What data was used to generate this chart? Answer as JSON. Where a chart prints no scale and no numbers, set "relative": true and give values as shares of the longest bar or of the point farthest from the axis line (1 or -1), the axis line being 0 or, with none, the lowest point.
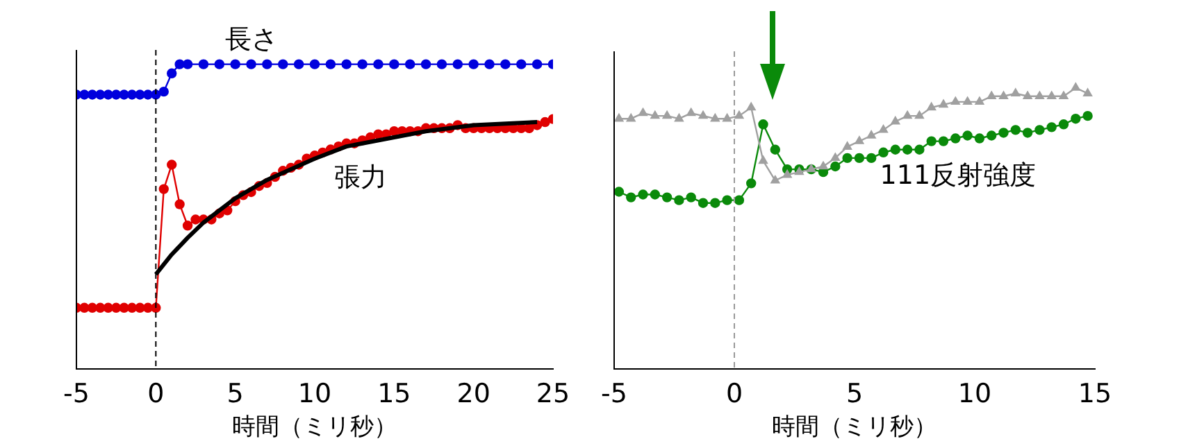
{
  "chart_data": [
    {
      "type": "line",
      "relative": true,
      "xlabel": "時間（ミリ秒）",
      "xlim": [
        -5,
        25
      ],
      "xticks": [
        -5,
        0,
        5,
        10,
        15,
        20,
        25
      ],
      "grid": false,
      "legend": false,
      "marker": "circle",
      "line_style": "solid",
      "ref_lines": [
        {
          "axis": "x",
          "value": 0,
          "color": "#000000",
          "line_style": "dashed"
        }
      ],
      "series": [
        {
          "name": "長さ",
          "color": "#0000dd",
          "x": [
            -5,
            -4.5,
            -4,
            -3.5,
            -3,
            -2.5,
            -2,
            -1.5,
            -1,
            -0.5,
            0,
            0.5,
            1,
            1.5,
            2,
            3,
            4,
            5,
            6,
            7,
            8,
            9,
            10,
            11,
            12,
            13,
            14,
            15,
            16,
            17,
            18,
            19,
            20,
            21,
            22,
            23,
            24,
            25
          ],
          "values": [
            0.9,
            0.9,
            0.9,
            0.9,
            0.9,
            0.9,
            0.9,
            0.9,
            0.9,
            0.9,
            0.9,
            0.91,
            0.97,
            1,
            1,
            1,
            1,
            1,
            1,
            1,
            1,
            1,
            1,
            1,
            1,
            1,
            1,
            1,
            1,
            1,
            1,
            1,
            1,
            1,
            1,
            1,
            1,
            1
          ]
        },
        {
          "name": "張力",
          "color": "#e00000",
          "x": [
            -5,
            -4.5,
            -4,
            -3.5,
            -3,
            -2.5,
            -2,
            -1.5,
            -1,
            -0.5,
            0,
            0.5,
            1,
            1.5,
            2,
            2.5,
            3,
            3.5,
            4,
            4.5,
            5,
            5.5,
            6,
            6.5,
            7,
            7.5,
            8,
            8.5,
            9,
            9.5,
            10,
            10.5,
            11,
            11.5,
            12,
            12.5,
            13,
            13.5,
            14,
            14.5,
            15,
            15.5,
            16,
            16.5,
            17,
            17.5,
            18,
            18.5,
            19,
            19.5,
            20,
            20.5,
            21,
            21.5,
            22,
            22.5,
            23,
            23.5,
            24,
            24.5,
            25
          ],
          "values": [
            0.2,
            0.2,
            0.2,
            0.2,
            0.2,
            0.2,
            0.2,
            0.2,
            0.2,
            0.2,
            0.2,
            0.59,
            0.67,
            0.54,
            0.47,
            0.49,
            0.49,
            0.49,
            0.51,
            0.52,
            0.55,
            0.57,
            0.58,
            0.6,
            0.61,
            0.63,
            0.65,
            0.66,
            0.67,
            0.69,
            0.7,
            0.71,
            0.72,
            0.73,
            0.74,
            0.74,
            0.75,
            0.76,
            0.77,
            0.77,
            0.78,
            0.78,
            0.78,
            0.78,
            0.79,
            0.79,
            0.79,
            0.79,
            0.8,
            0.79,
            0.79,
            0.79,
            0.79,
            0.79,
            0.79,
            0.79,
            0.79,
            0.79,
            0.8,
            0.81,
            0.82
          ]
        },
        {
          "type": "line",
          "marker": "none",
          "color": "#000000",
          "x": [
            0,
            1,
            2,
            3,
            4,
            5,
            7,
            10,
            12,
            15,
            17,
            20,
            24
          ],
          "values": [
            0.31,
            0.375,
            0.43,
            0.48,
            0.52,
            0.56,
            0.62,
            0.69,
            0.73,
            0.76,
            0.78,
            0.8,
            0.81
          ]
        }
      ]
    },
    {
      "type": "line",
      "relative": true,
      "xlabel": "時間（ミリ秒）",
      "xlim": [
        -5,
        15
      ],
      "xticks": [
        -5,
        0,
        5,
        10,
        15
      ],
      "grid": false,
      "legend": false,
      "marker": "circle",
      "line_style": "solid",
      "ref_lines": [
        {
          "axis": "x",
          "value": 0,
          "color": "#999999",
          "line_style": "dashed"
        }
      ],
      "series": [
        {
          "marker": "triangle",
          "color": "#a0a0a0",
          "x": [
            -4.8,
            -4.3,
            -3.8,
            -3.3,
            -2.8,
            -2.3,
            -1.8,
            -1.3,
            -0.8,
            -0.3,
            0.2,
            0.7,
            1.2,
            1.7,
            2.2,
            2.7,
            3.2,
            3.7,
            4.2,
            4.7,
            5.2,
            5.7,
            6.2,
            6.7,
            7.2,
            7.7,
            8.2,
            8.7,
            9.2,
            9.7,
            10.2,
            10.7,
            11.2,
            11.7,
            12.2,
            12.7,
            13.2,
            13.7,
            14.2,
            14.7
          ],
          "values": [
            0.89,
            0.89,
            0.91,
            0.9,
            0.9,
            0.89,
            0.91,
            0.9,
            0.89,
            0.89,
            0.9,
            0.93,
            0.74,
            0.67,
            0.69,
            0.7,
            0.71,
            0.72,
            0.75,
            0.79,
            0.81,
            0.83,
            0.85,
            0.88,
            0.9,
            0.9,
            0.93,
            0.94,
            0.95,
            0.95,
            0.95,
            0.97,
            0.97,
            0.98,
            0.97,
            0.97,
            0.97,
            0.97,
            1,
            0.98
          ]
        },
        {
          "name": "111反射強度",
          "color": "#0a8a0a",
          "x": [
            -4.8,
            -4.3,
            -3.8,
            -3.3,
            -2.8,
            -2.3,
            -1.8,
            -1.3,
            -0.8,
            -0.3,
            0.2,
            0.7,
            1.2,
            1.7,
            2.2,
            2.7,
            3.2,
            3.7,
            4.2,
            4.7,
            5.2,
            5.7,
            6.2,
            6.7,
            7.2,
            7.7,
            8.2,
            8.7,
            9.2,
            9.7,
            10.2,
            10.7,
            11.2,
            11.7,
            12.2,
            12.7,
            13.2,
            13.7,
            14.2,
            14.7
          ],
          "values": [
            0.63,
            0.61,
            0.62,
            0.62,
            0.61,
            0.6,
            0.61,
            0.59,
            0.59,
            0.6,
            0.6,
            0.66,
            0.87,
            0.78,
            0.71,
            0.71,
            0.71,
            0.7,
            0.72,
            0.75,
            0.75,
            0.75,
            0.77,
            0.78,
            0.78,
            0.78,
            0.81,
            0.81,
            0.82,
            0.83,
            0.82,
            0.83,
            0.84,
            0.85,
            0.84,
            0.85,
            0.86,
            0.87,
            0.89,
            0.9
          ]
        }
      ]
    }
  ]
}
